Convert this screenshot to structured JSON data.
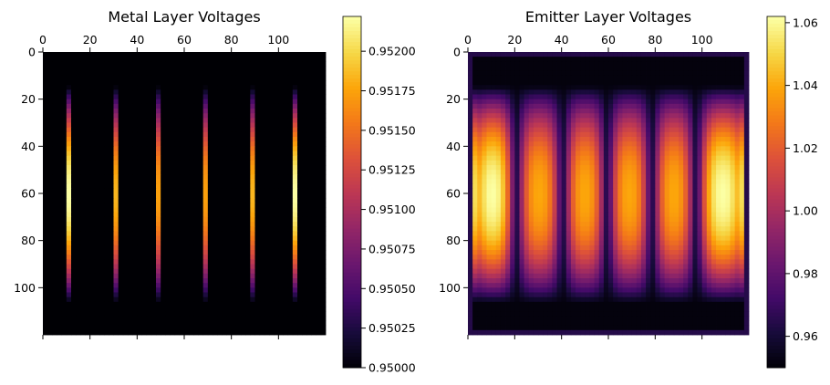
{
  "chart_data": [
    {
      "type": "heatmap",
      "title": "Metal Layer Voltages",
      "xlabel": "",
      "ylabel": "",
      "grid_shape": [
        120,
        120
      ],
      "xlim": [
        0,
        120
      ],
      "ylim": [
        120,
        0
      ],
      "x_ticks": [
        0,
        20,
        40,
        60,
        80,
        100
      ],
      "y_ticks": [
        0,
        20,
        40,
        60,
        80,
        100
      ],
      "x_tick_labels": [
        "0",
        "20",
        "40",
        "60",
        "80",
        "100"
      ],
      "y_tick_labels": [
        "0",
        "20",
        "40",
        "60",
        "80",
        "100"
      ],
      "x_axis_position": "top",
      "colormap": "inferno",
      "colorbar": {
        "min": 0.95,
        "max": 0.95222,
        "ticks": [
          0.95,
          0.95025,
          0.9505,
          0.95075,
          0.951,
          0.95125,
          0.9515,
          0.95175,
          0.952
        ],
        "tick_labels": [
          "0.95000",
          "0.95025",
          "0.95050",
          "0.95075",
          "0.95100",
          "0.95125",
          "0.95150",
          "0.95175",
          "0.95200"
        ]
      },
      "background_value": 0.95,
      "stripes": {
        "centers": [
          11,
          31,
          49,
          69,
          88,
          107
        ],
        "half_width": 1,
        "row_start": 14,
        "row_end": 106,
        "peak_values": [
          0.95222,
          0.95185,
          0.95175,
          0.95175,
          0.95185,
          0.95222
        ]
      }
    },
    {
      "type": "heatmap",
      "title": "Emitter Layer Voltages",
      "xlabel": "",
      "ylabel": "",
      "grid_shape": [
        120,
        120
      ],
      "xlim": [
        0,
        120
      ],
      "ylim": [
        120,
        0
      ],
      "x_ticks": [
        0,
        20,
        40,
        60,
        80,
        100
      ],
      "y_ticks": [
        0,
        20,
        40,
        60,
        80,
        100
      ],
      "x_tick_labels": [
        "0",
        "20",
        "40",
        "60",
        "80",
        "100"
      ],
      "y_tick_labels": [
        "0",
        "20",
        "40",
        "60",
        "80",
        "100"
      ],
      "x_axis_position": "top",
      "colormap": "inferno",
      "colorbar": {
        "min": 0.95,
        "max": 1.062,
        "ticks": [
          0.96,
          0.98,
          1.0,
          1.02,
          1.04,
          1.06
        ],
        "tick_labels": [
          "0.96",
          "0.98",
          "1.00",
          "1.02",
          "1.04",
          "1.06"
        ]
      },
      "background_value": 0.952,
      "border_value": 0.965,
      "region_rows": [
        14,
        106
      ],
      "fingers": {
        "centers": [
          11,
          31,
          49,
          69,
          88,
          107
        ],
        "inner_peak": 1.04,
        "edge_peak": 1.062
      }
    }
  ]
}
